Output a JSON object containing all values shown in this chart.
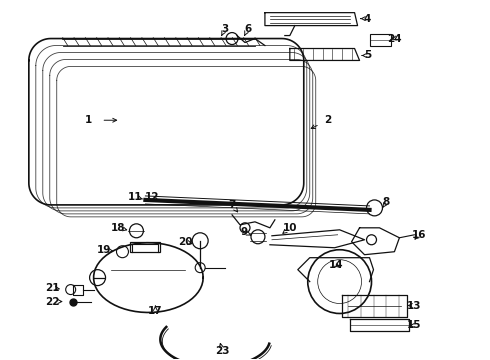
{
  "bg_color": "#ffffff",
  "fig_width": 4.9,
  "fig_height": 3.6,
  "dpi": 100,
  "line_color": "#111111",
  "label_fontsize": 7.5
}
